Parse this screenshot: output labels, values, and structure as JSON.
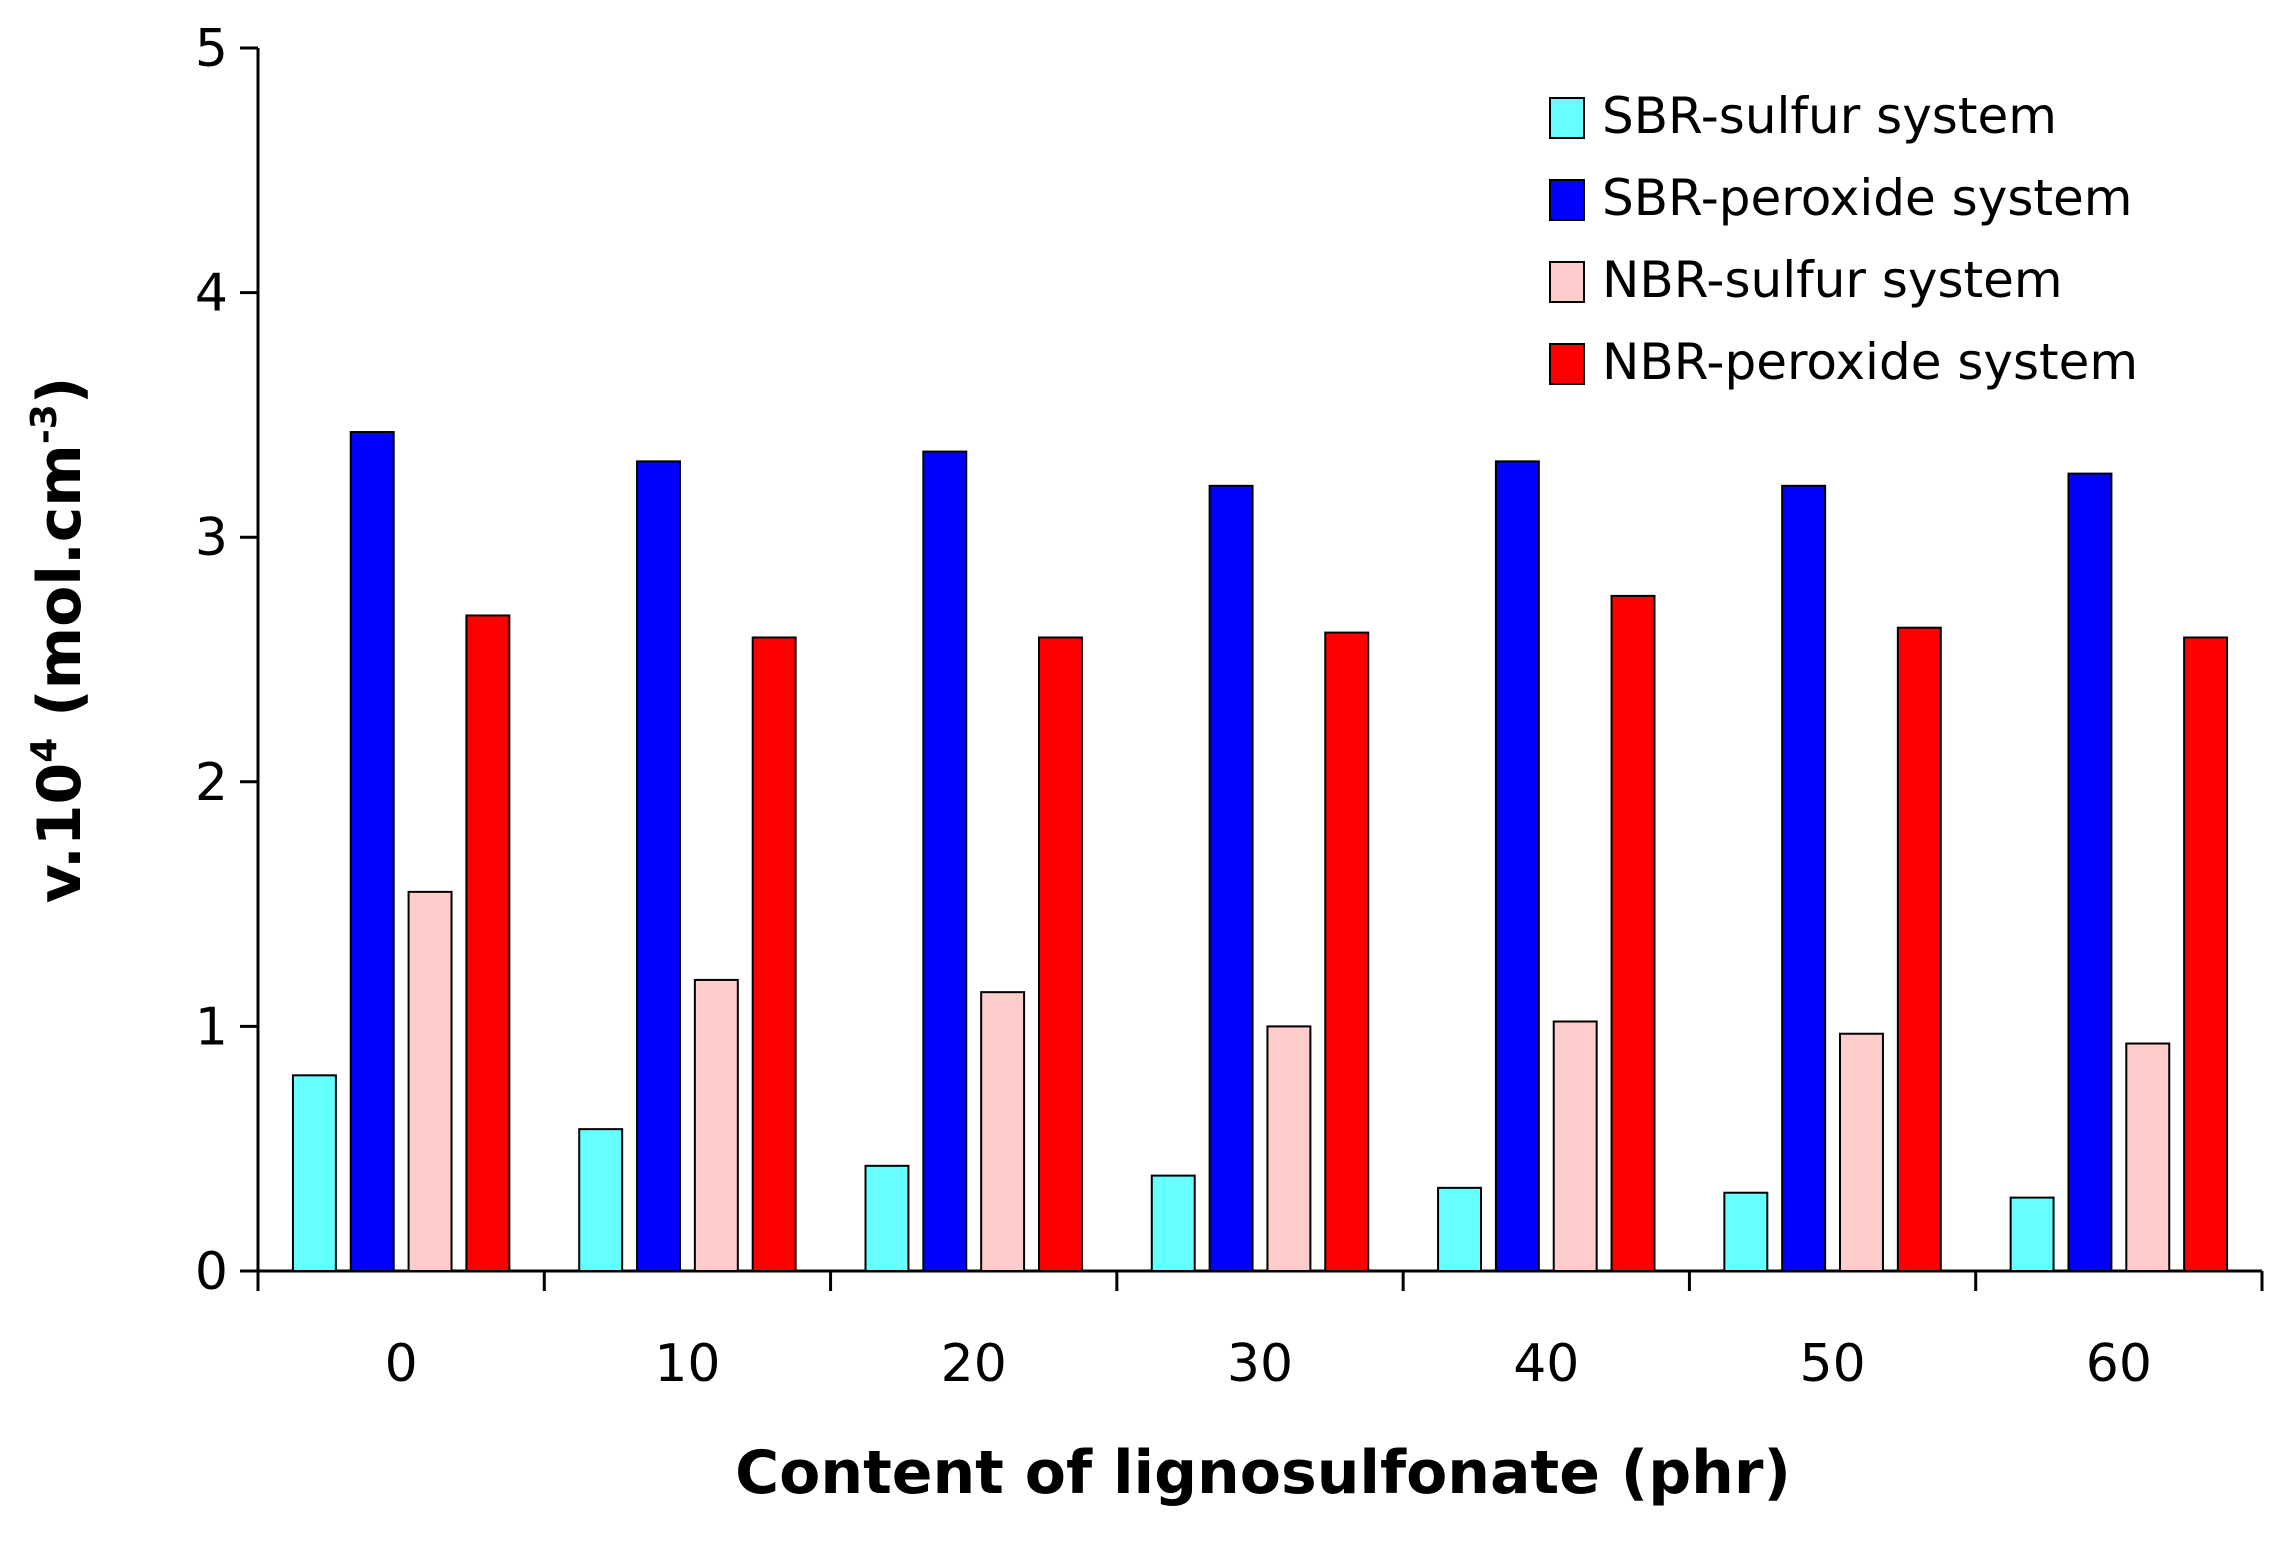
{
  "chart_data": {
    "type": "bar",
    "title": "",
    "xlabel": "Content of lignosulfonate (phr)",
    "ylabel_main": "v.10",
    "ylabel_sup1": "4",
    "ylabel_mid": " (mol.cm",
    "ylabel_sup2": "-3",
    "ylabel_end": ")",
    "ylim": [
      0,
      5
    ],
    "yticks": [
      "0",
      "1",
      "2",
      "3",
      "4",
      "5"
    ],
    "categories": [
      "0",
      "10",
      "20",
      "30",
      "40",
      "50",
      "60"
    ],
    "legend_position": "top-right",
    "series": [
      {
        "name": "SBR-sulfur system",
        "color": "#66FFFF",
        "values": [
          0.8,
          0.58,
          0.43,
          0.39,
          0.34,
          0.32,
          0.3
        ]
      },
      {
        "name": "SBR-peroxide system",
        "color": "#0000FF",
        "values": [
          3.43,
          3.31,
          3.35,
          3.21,
          3.31,
          3.21,
          3.26
        ]
      },
      {
        "name": "NBR-sulfur system",
        "color": "#FFCCCC",
        "values": [
          1.55,
          1.19,
          1.14,
          1.0,
          1.02,
          0.97,
          0.93
        ]
      },
      {
        "name": "NBR-peroxide system",
        "color": "#FF0000",
        "values": [
          2.68,
          2.59,
          2.59,
          2.61,
          2.76,
          2.63,
          2.59
        ]
      }
    ]
  }
}
